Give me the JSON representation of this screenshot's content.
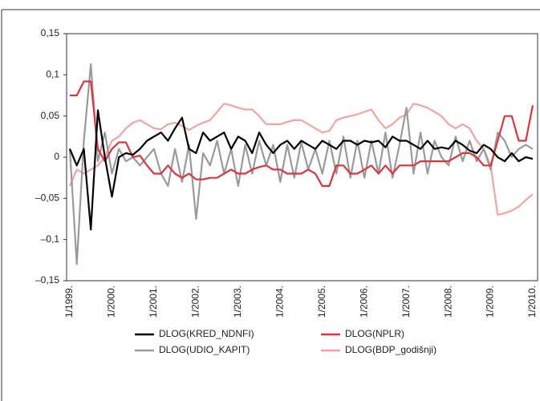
{
  "chart_data": {
    "type": "line",
    "categories": [
      "1/1999.",
      null,
      null,
      null,
      null,
      null,
      "1/2000.",
      null,
      null,
      null,
      null,
      null,
      "1/2001.",
      null,
      null,
      null,
      null,
      null,
      "1/2002.",
      null,
      null,
      null,
      null,
      null,
      "1/2003.",
      null,
      null,
      null,
      null,
      null,
      "1/2004.",
      null,
      null,
      null,
      null,
      null,
      "1/2005.",
      null,
      null,
      null,
      null,
      null,
      "1/2006.",
      null,
      null,
      null,
      null,
      null,
      "1/2007.",
      null,
      null,
      null,
      null,
      null,
      "1/2008.",
      null,
      null,
      null,
      null,
      null,
      "1/2009.",
      null,
      null,
      null,
      null,
      null,
      "1/2010."
    ],
    "series": [
      {
        "name": "DLOG(KRED_NDNFI)",
        "color": "#000000",
        "values": [
          0.01,
          -0.01,
          0.01,
          -0.088,
          0.057,
          0.0,
          -0.048,
          0.0,
          0.005,
          0.003,
          0.01,
          0.02,
          0.025,
          0.03,
          0.02,
          0.035,
          0.048,
          0.01,
          0.005,
          0.03,
          0.02,
          0.025,
          0.03,
          0.01,
          0.025,
          0.02,
          0.005,
          0.03,
          0.015,
          0.005,
          0.015,
          0.02,
          0.01,
          0.02,
          0.015,
          0.01,
          0.02,
          0.015,
          0.01,
          0.02,
          0.02,
          0.015,
          0.02,
          0.018,
          0.02,
          0.012,
          0.025,
          0.02,
          0.02,
          0.015,
          0.01,
          0.02,
          0.01,
          0.012,
          0.01,
          0.02,
          0.015,
          0.008,
          0.005,
          0.015,
          0.01,
          0.0,
          -0.005,
          0.005,
          -0.005,
          0.0,
          -0.002
        ]
      },
      {
        "name": "DLOG(NPLR)",
        "color": "#d9363e",
        "values": [
          0.075,
          0.075,
          0.092,
          0.092,
          0.01,
          -0.005,
          0.01,
          0.018,
          0.018,
          0.0,
          0.002,
          -0.01,
          -0.02,
          -0.02,
          -0.01,
          -0.02,
          -0.025,
          -0.02,
          -0.027,
          -0.027,
          -0.025,
          -0.025,
          -0.02,
          -0.015,
          -0.02,
          -0.02,
          -0.015,
          -0.012,
          -0.01,
          -0.015,
          -0.015,
          -0.02,
          -0.02,
          -0.02,
          -0.015,
          -0.02,
          -0.035,
          -0.035,
          -0.01,
          -0.01,
          -0.02,
          -0.02,
          -0.015,
          -0.01,
          -0.02,
          -0.01,
          -0.02,
          -0.01,
          -0.01,
          -0.01,
          -0.005,
          -0.005,
          -0.005,
          -0.005,
          -0.005,
          0.0,
          0.005,
          0.005,
          0.0,
          -0.01,
          -0.01,
          0.02,
          0.05,
          0.05,
          0.02,
          0.02,
          0.063
        ]
      },
      {
        "name": "DLOG(UDIO_KAPIT)",
        "color": "#9a9a9a",
        "values": [
          0.01,
          -0.13,
          0.02,
          0.113,
          -0.005,
          0.03,
          -0.02,
          0.01,
          -0.005,
          0.0,
          -0.01,
          0.0,
          0.01,
          -0.02,
          -0.035,
          0.01,
          -0.03,
          0.015,
          -0.075,
          0.005,
          -0.01,
          0.02,
          -0.02,
          0.01,
          -0.035,
          0.015,
          -0.02,
          0.02,
          -0.01,
          0.015,
          -0.03,
          0.015,
          -0.025,
          0.018,
          -0.015,
          0.01,
          -0.02,
          0.02,
          -0.02,
          0.025,
          -0.025,
          0.02,
          -0.025,
          0.02,
          -0.02,
          0.03,
          -0.025,
          0.015,
          0.06,
          -0.02,
          0.03,
          -0.02,
          0.02,
          0.0,
          -0.01,
          0.025,
          -0.005,
          0.02,
          -0.005,
          0.01,
          -0.015,
          0.03,
          0.02,
          0.0,
          0.01,
          0.015,
          0.01
        ]
      },
      {
        "name": "DLOG(BDP_godišnji)",
        "color": "#f2a3a3",
        "values": [
          -0.035,
          -0.015,
          -0.02,
          -0.015,
          -0.01,
          0.0,
          0.02,
          0.025,
          0.035,
          0.042,
          0.045,
          0.04,
          0.035,
          0.034,
          0.04,
          0.042,
          0.038,
          0.033,
          0.038,
          0.042,
          0.045,
          0.055,
          0.065,
          0.063,
          0.06,
          0.058,
          0.058,
          0.05,
          0.04,
          0.04,
          0.04,
          0.043,
          0.045,
          0.045,
          0.04,
          0.035,
          0.03,
          0.032,
          0.045,
          0.048,
          0.05,
          0.052,
          0.055,
          0.058,
          0.045,
          0.035,
          0.04,
          0.048,
          0.052,
          0.065,
          0.063,
          0.06,
          0.055,
          0.05,
          0.04,
          0.035,
          0.04,
          0.035,
          0.02,
          0.01,
          -0.01,
          -0.07,
          -0.068,
          -0.065,
          -0.06,
          -0.052,
          -0.045
        ]
      }
    ],
    "ylim": [
      -0.15,
      0.15
    ],
    "yticks": [
      {
        "value": 0.15,
        "label": "0,15"
      },
      {
        "value": 0.1,
        "label": "0,1"
      },
      {
        "value": 0.05,
        "label": "0,05"
      },
      0,
      {
        "value": -0.05,
        "label": "–0,05"
      },
      {
        "value": -0.1,
        "label": "–0,1"
      },
      {
        "value": -0.15,
        "label": "–0,15"
      }
    ],
    "legend": "bottom"
  }
}
